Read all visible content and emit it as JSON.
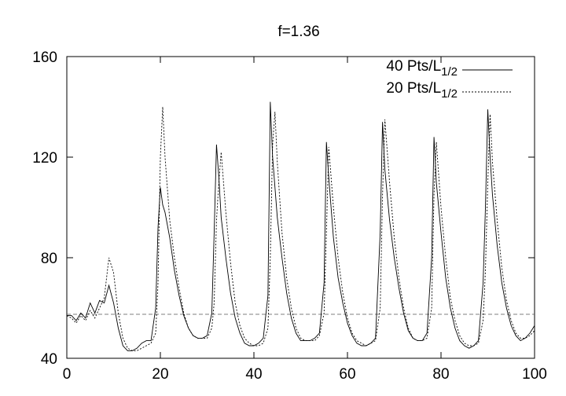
{
  "chart_data": {
    "type": "line",
    "title": "f=1.36",
    "x": [
      0,
      1,
      2,
      3,
      4,
      5,
      6,
      7,
      8,
      9,
      10,
      11,
      12,
      13,
      14,
      15,
      16,
      17,
      18,
      19,
      19.5,
      20,
      20.5,
      21,
      22,
      23,
      24,
      25,
      26,
      27,
      28,
      29,
      30,
      31,
      31.5,
      32,
      32.5,
      33,
      34,
      35,
      36,
      37,
      38,
      39,
      40,
      41,
      42,
      43,
      43.5,
      44,
      44.5,
      45,
      46,
      47,
      48,
      49,
      50,
      51,
      52,
      53,
      54,
      55,
      55.5,
      56,
      56.5,
      57,
      58,
      59,
      60,
      61,
      62,
      63,
      64,
      65,
      66,
      67,
      67.5,
      68,
      69,
      70,
      71,
      72,
      73,
      74,
      75,
      76,
      77,
      78,
      78.5,
      79,
      80,
      81,
      82,
      83,
      84,
      85,
      86,
      87,
      88,
      89,
      89.5,
      90,
      90.5,
      91,
      92,
      93,
      94,
      95,
      96,
      97,
      98,
      99,
      100
    ],
    "series": [
      {
        "name": "40 Pts/L",
        "name_sub": "1/2",
        "color": "#000000",
        "dash": "none",
        "values": [
          57,
          57,
          55,
          58,
          56,
          62,
          58,
          63,
          62,
          69,
          62,
          52,
          45,
          43,
          43,
          44,
          46,
          47,
          47,
          60,
          92,
          108,
          101,
          98,
          88,
          75,
          65,
          57,
          52,
          49,
          48,
          48,
          49,
          58,
          90,
          125,
          112,
          96,
          80,
          66,
          56,
          50,
          46,
          45,
          45,
          46,
          48,
          65,
          142,
          120,
          108,
          96,
          80,
          66,
          56,
          50,
          47,
          47,
          47,
          48,
          50,
          70,
          126,
          112,
          100,
          88,
          72,
          62,
          54,
          49,
          46,
          45,
          45,
          46,
          48,
          90,
          134,
          115,
          95,
          80,
          68,
          58,
          51,
          48,
          47,
          47,
          50,
          80,
          128,
          110,
          90,
          72,
          60,
          52,
          47,
          45,
          44,
          45,
          47,
          70,
          100,
          139,
          120,
          105,
          85,
          70,
          60,
          53,
          49,
          47,
          48,
          50,
          53
        ]
      },
      {
        "name": "20 Pts/L",
        "name_sub": "1/2",
        "color": "#000000",
        "dash": "2,2",
        "values": [
          57,
          56,
          54,
          57,
          55,
          59,
          56,
          60,
          64,
          80,
          74,
          58,
          48,
          44,
          43,
          43,
          44,
          45,
          46,
          50,
          70,
          120,
          140,
          120,
          95,
          80,
          68,
          58,
          52,
          49,
          48,
          48,
          48,
          52,
          62,
          95,
          110,
          122,
          98,
          78,
          62,
          53,
          48,
          46,
          45,
          45,
          46,
          52,
          80,
          125,
          138,
          118,
          90,
          72,
          60,
          52,
          48,
          47,
          47,
          47,
          49,
          58,
          90,
          124,
          112,
          100,
          80,
          66,
          56,
          50,
          47,
          46,
          45,
          46,
          47,
          60,
          105,
          135,
          110,
          88,
          72,
          60,
          52,
          48,
          47,
          47,
          48,
          60,
          105,
          126,
          100,
          80,
          64,
          55,
          49,
          46,
          45,
          45,
          46,
          55,
          75,
          110,
          137,
          118,
          95,
          76,
          63,
          55,
          50,
          48,
          48,
          49,
          51
        ]
      }
    ],
    "hline": 57.5,
    "xlim": [
      0,
      100
    ],
    "xticks": [
      0,
      20,
      40,
      60,
      80,
      100
    ],
    "ylim": [
      40,
      160
    ],
    "yticks": [
      40,
      80,
      120,
      160
    ]
  }
}
